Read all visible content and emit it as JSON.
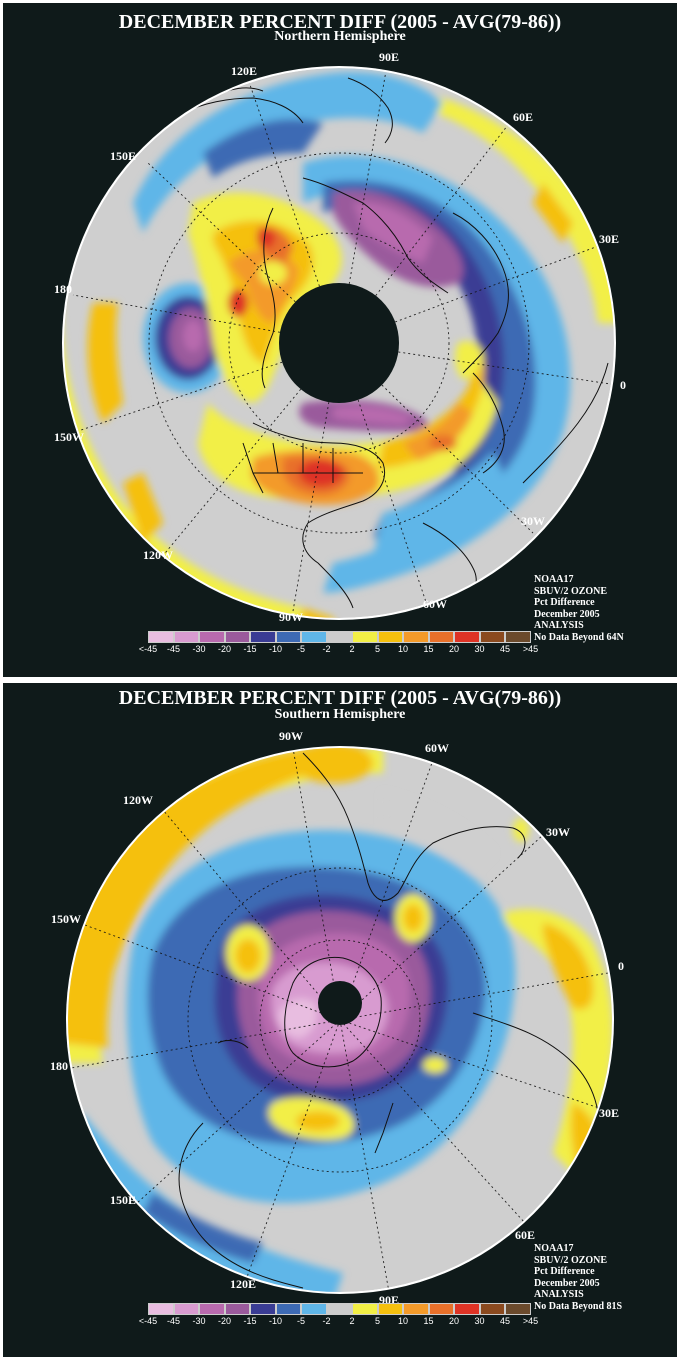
{
  "north": {
    "title": "DECEMBER PERCENT DIFF (2005 - AVG(79-86))",
    "subtitle": "Northern Hemisphere",
    "longitudes": [
      "90E",
      "60E",
      "30E",
      "0",
      "30W",
      "60W",
      "90W",
      "120W",
      "150W",
      "180",
      "150E",
      "120E"
    ],
    "info": [
      "NOAA17",
      "SBUV/2 OZONE",
      "Pct Difference",
      "December 2005",
      "ANALYSIS",
      "No Data Beyond 64N"
    ]
  },
  "south": {
    "title": "DECEMBER PERCENT DIFF (2005 - AVG(79-86))",
    "subtitle": "Southern Hemisphere",
    "longitudes": [
      "90W",
      "60W",
      "30W",
      "0",
      "30E",
      "60E",
      "90E",
      "120E",
      "150E",
      "180",
      "150W",
      "120W"
    ],
    "info": [
      "NOAA17",
      "SBUV/2 OZONE",
      "Pct Difference",
      "December 2005",
      "ANALYSIS",
      "No Data Beyond 81S"
    ]
  },
  "legend": {
    "labels": [
      "<-45",
      "-45",
      "-30",
      "-20",
      "-15",
      "-10",
      "-5",
      "-2",
      "2",
      "5",
      "10",
      "15",
      "20",
      "30",
      "45",
      ">45"
    ],
    "colors": [
      "#e8bde0",
      "#d89bd0",
      "#b86aae",
      "#9a5a9c",
      "#3a3c94",
      "#3d6ab4",
      "#5fb6e8",
      "#cccccc",
      "#f2ef46",
      "#f5c00e",
      "#f39a2a",
      "#e8702a",
      "#de3325",
      "#8b4a1f",
      "#6b4a2c"
    ]
  },
  "colors": {
    "background": "#0f1a1a",
    "ocean_neutral": "#cfcfcf",
    "frame": "#ffffff"
  }
}
